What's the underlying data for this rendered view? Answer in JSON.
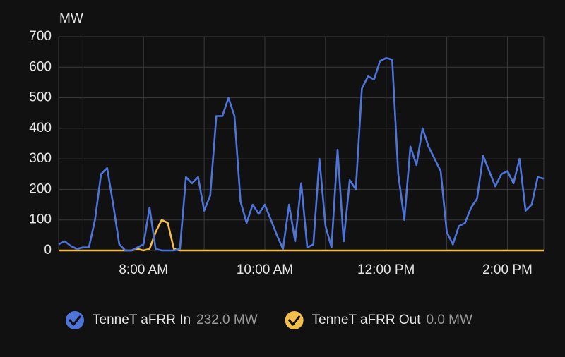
{
  "chart_data": {
    "type": "line",
    "y_label": "MW",
    "x": [
      6.6,
      6.7,
      6.8,
      6.9,
      7.0,
      7.1,
      7.2,
      7.3,
      7.4,
      7.5,
      7.6,
      7.7,
      7.8,
      7.9,
      8.0,
      8.1,
      8.2,
      8.3,
      8.4,
      8.5,
      8.6,
      8.7,
      8.8,
      8.9,
      9.0,
      9.1,
      9.2,
      9.3,
      9.4,
      9.5,
      9.6,
      9.7,
      9.8,
      9.9,
      10.0,
      10.1,
      10.2,
      10.3,
      10.4,
      10.5,
      10.6,
      10.7,
      10.8,
      10.9,
      11.0,
      11.1,
      11.2,
      11.3,
      11.4,
      11.5,
      11.6,
      11.7,
      11.8,
      11.9,
      12.0,
      12.1,
      12.2,
      12.3,
      12.4,
      12.5,
      12.6,
      12.7,
      12.8,
      12.9,
      13.0,
      13.1,
      13.2,
      13.3,
      13.4,
      13.5,
      13.6,
      13.7,
      13.8,
      13.9,
      14.0,
      14.1,
      14.2,
      14.3,
      14.4,
      14.5,
      14.6
    ],
    "series": [
      {
        "name": "TenneT aFRR In",
        "state": "232.0 MW",
        "color": "#4f74d9",
        "values": [
          20,
          30,
          15,
          5,
          10,
          10,
          100,
          250,
          270,
          150,
          20,
          0,
          0,
          10,
          20,
          140,
          5,
          0,
          0,
          0,
          5,
          240,
          220,
          240,
          130,
          180,
          440,
          440,
          500,
          440,
          160,
          90,
          150,
          120,
          150,
          100,
          50,
          5,
          150,
          30,
          220,
          10,
          20,
          300,
          80,
          10,
          330,
          30,
          230,
          200,
          530,
          570,
          560,
          620,
          630,
          625,
          250,
          100,
          340,
          280,
          400,
          340,
          300,
          260,
          60,
          20,
          80,
          90,
          140,
          170,
          310,
          260,
          210,
          250,
          260,
          220,
          300,
          130,
          150,
          240,
          235
        ]
      },
      {
        "name": "TenneT aFRR Out",
        "state": "0.0 MW",
        "color": "#f2bd4b",
        "values": [
          0,
          0,
          0,
          0,
          0,
          0,
          0,
          0,
          0,
          0,
          0,
          0,
          0,
          5,
          0,
          5,
          60,
          100,
          90,
          5,
          0,
          0,
          0,
          0,
          0,
          0,
          0,
          0,
          0,
          0,
          0,
          0,
          0,
          0,
          0,
          0,
          0,
          0,
          0,
          0,
          0,
          0,
          0,
          0,
          0,
          0,
          0,
          0,
          0,
          0,
          0,
          0,
          0,
          0,
          0,
          0,
          0,
          0,
          0,
          0,
          0,
          0,
          0,
          0,
          0,
          0,
          0,
          0,
          0,
          0,
          0,
          0,
          0,
          0,
          0,
          0,
          0,
          0,
          0,
          0,
          0
        ]
      }
    ],
    "xlim": [
      6.6,
      14.6
    ],
    "xticks": [
      {
        "value": 8,
        "label": "8:00 AM"
      },
      {
        "value": 10,
        "label": "10:00 AM"
      },
      {
        "value": 12,
        "label": "12:00 PM"
      },
      {
        "value": 14,
        "label": "2:00 PM"
      }
    ],
    "x_minor_ticks": [
      7,
      9,
      11,
      13
    ],
    "ylim": [
      0,
      700
    ],
    "yticks": [
      0,
      100,
      200,
      300,
      400,
      500,
      600,
      700
    ],
    "grid": true
  }
}
